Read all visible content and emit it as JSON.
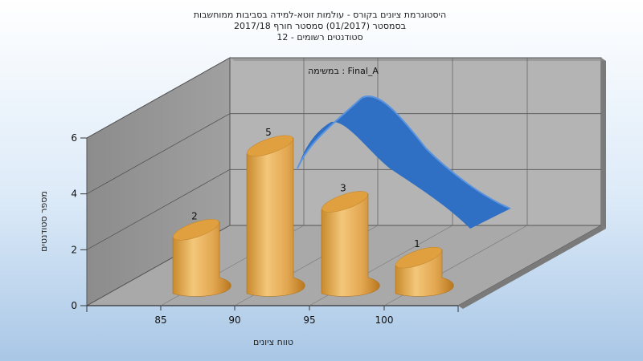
{
  "chart_data": {
    "type": "bar",
    "title_lines": [
      "היסטוגרמת ציונים בקורס - עולמות זוטא-למידה בסביבות ממוחשבות",
      "בסמסטר  (01/2017)  סמסטר חורף 2017/18",
      "סטודנטים רשומים - 12"
    ],
    "series_label": "במשימה : Final_A",
    "xlabel": "טווח ציונים",
    "ylabel": "מספר סטודנטים",
    "x_ticks": [
      "85",
      "90",
      "95",
      "100"
    ],
    "y_ticks": [
      0,
      2,
      4,
      6
    ],
    "ylim": [
      0,
      6
    ],
    "bars": [
      {
        "value": 2,
        "label": "2"
      },
      {
        "value": 5,
        "label": "5"
      },
      {
        "value": 3,
        "label": "3"
      },
      {
        "value": 1,
        "label": "1"
      }
    ],
    "bar_color": "#e0a040",
    "curve_color": "#2f6fc4",
    "grid": true
  }
}
